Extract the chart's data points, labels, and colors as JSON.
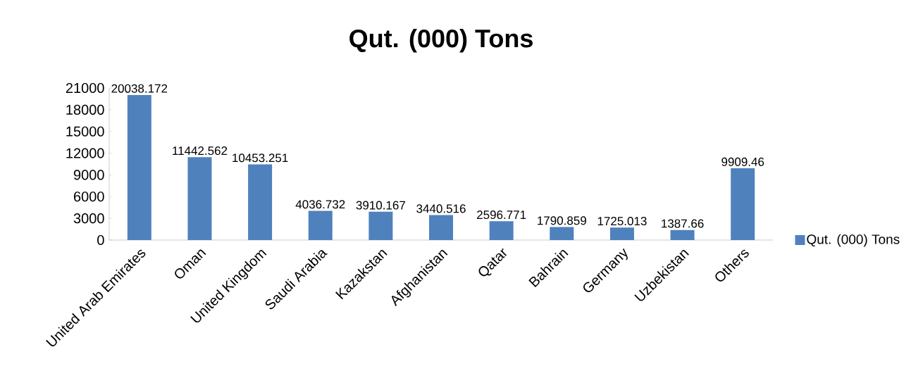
{
  "chart_data": {
    "type": "bar",
    "title": "Qut. (000) Tons",
    "categories": [
      "United Arab Emirates",
      "Oman",
      "United Kingdom",
      "Saudi Arabia",
      "Kazakstan",
      "Afghanistan",
      "Qatar",
      "Bahrain",
      "Germany",
      "Uzbekistan",
      "Others"
    ],
    "series": [
      {
        "name": "Qut. (000) Tons",
        "color": "#4f81bd",
        "values": [
          20038.172,
          11442.562,
          10453.251,
          4036.732,
          3910.167,
          3440.516,
          2596.771,
          1790.859,
          1725.013,
          1387.66,
          9909.46
        ]
      }
    ],
    "ylim": [
      0,
      21000
    ],
    "yticks": [
      0,
      3000,
      6000,
      9000,
      12000,
      15000,
      18000,
      21000
    ],
    "data_labels": true,
    "legend": "right",
    "grid": false
  }
}
